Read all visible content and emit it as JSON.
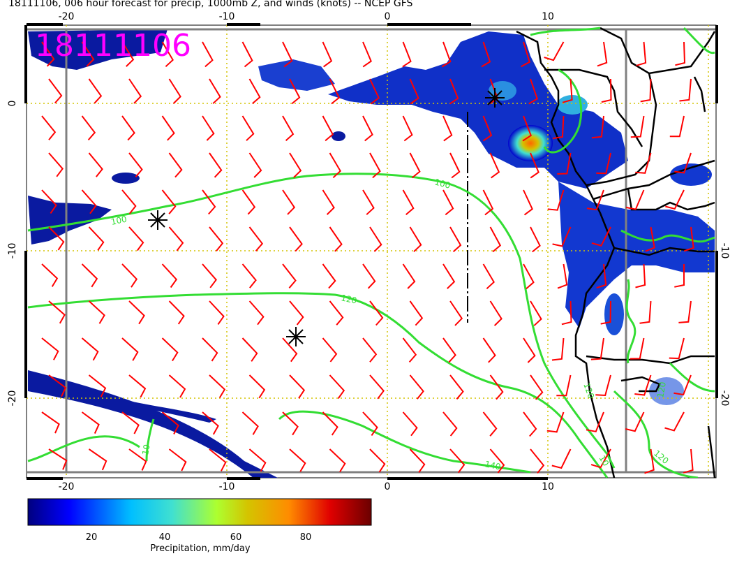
{
  "title": "18111106, 006 hour forecast for precip, 1000mb Z, and winds (knots) -- NCEP GFS",
  "date_stamp": "18111106",
  "axes": {
    "x_ticks": [
      "-20",
      "-10",
      "0",
      "10"
    ],
    "y_ticks": [
      "0",
      "-10",
      "-20"
    ]
  },
  "contour_labels": [
    "100",
    "100",
    "120",
    "120",
    "140",
    "10",
    "10",
    "120",
    "120"
  ],
  "colorbar": {
    "ticks": [
      "20",
      "40",
      "60",
      "80"
    ],
    "label": "Precipitation, mm/day",
    "colors": [
      "#00007f",
      "#0000ff",
      "#00bfff",
      "#40e0d0",
      "#adff2f",
      "#d4c400",
      "#ff8c00",
      "#e00000",
      "#6b0000"
    ]
  },
  "colors": {
    "contour": "#33dd33",
    "wind_barb": "#ff0000",
    "grid_line": "#d4c400",
    "frame": "#808080",
    "coast": "#000000"
  },
  "markers": [
    "low-center",
    "low-center",
    "low-center"
  ]
}
